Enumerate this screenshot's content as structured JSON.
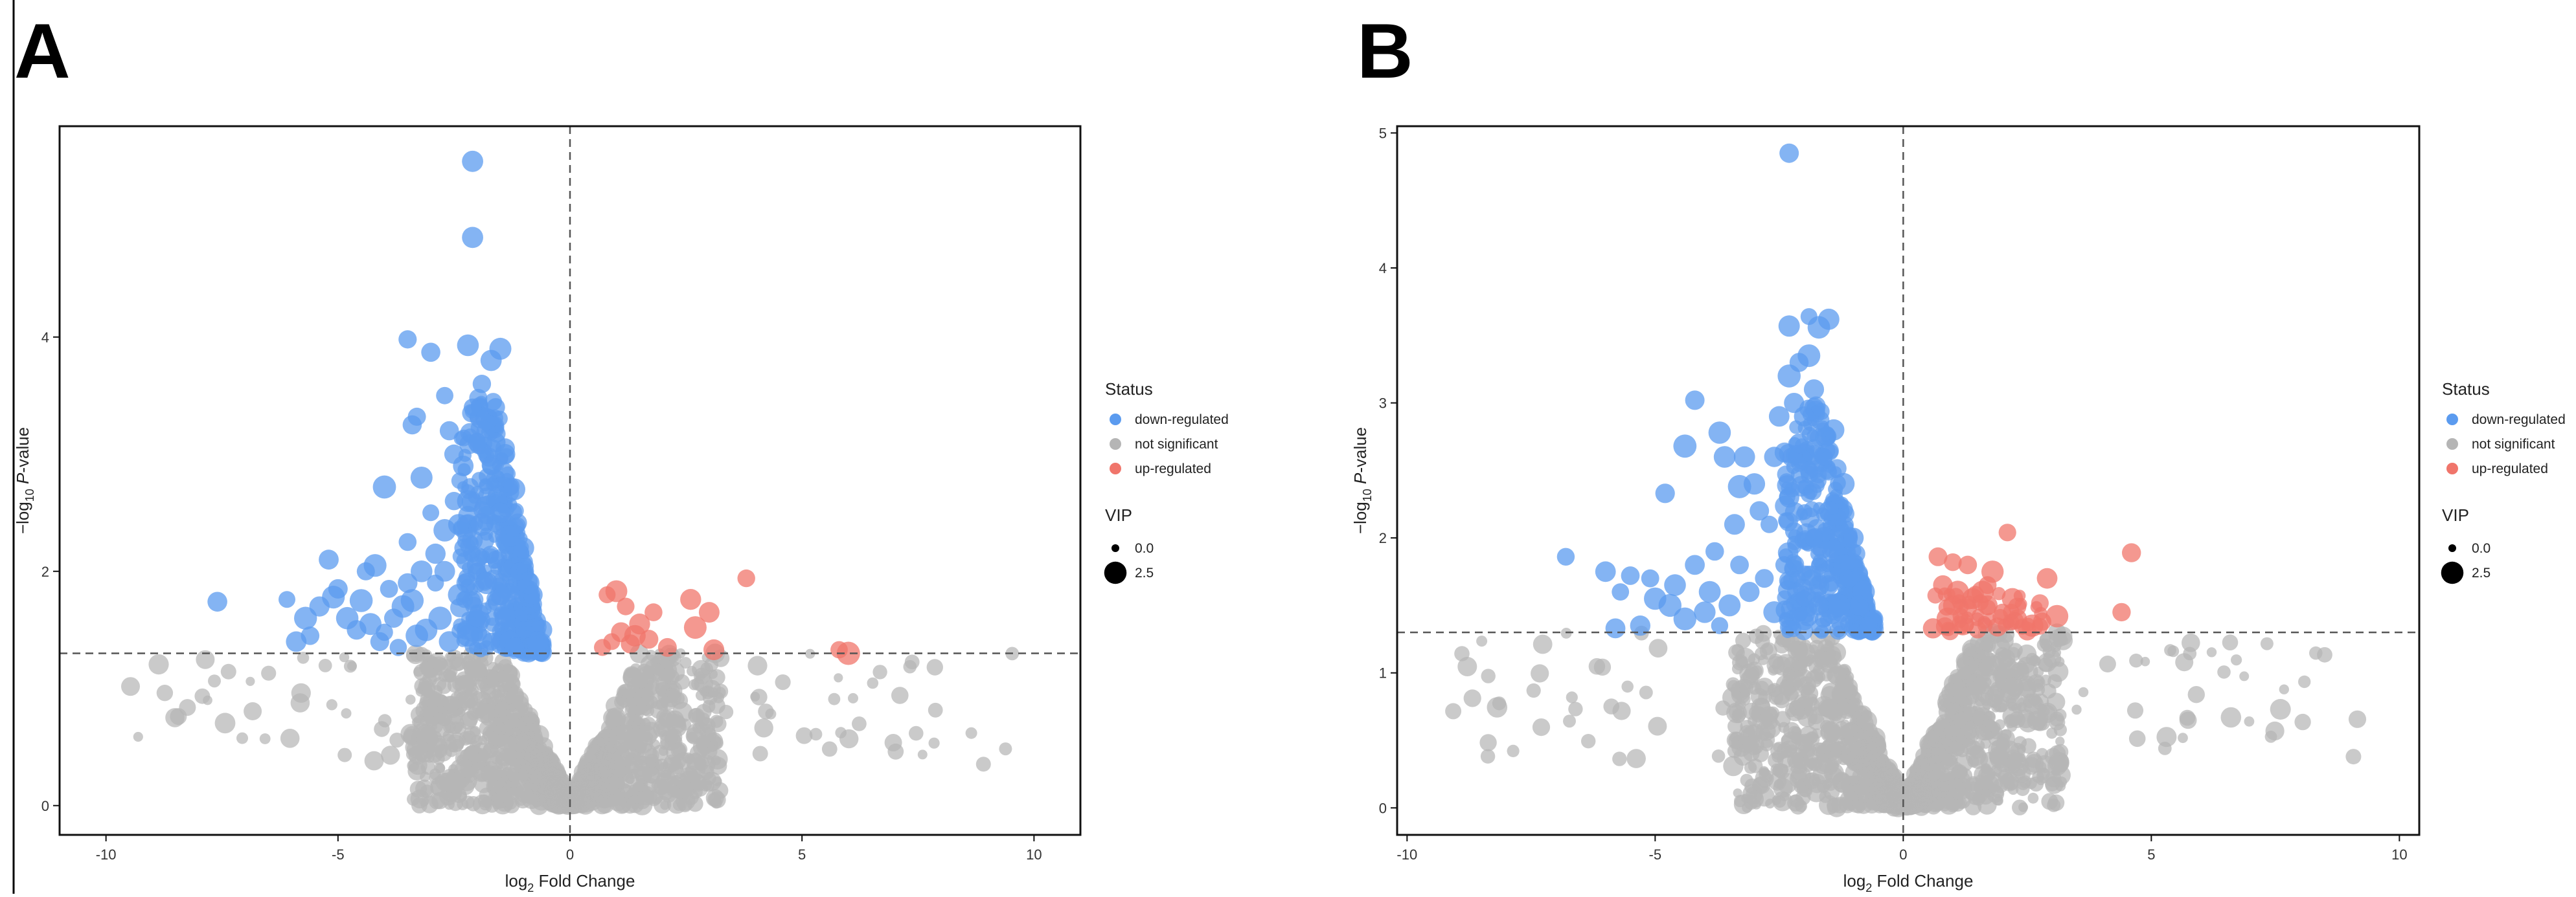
{
  "chart_data": [
    {
      "panel": "A",
      "type": "scatter",
      "subtype": "volcano",
      "xlabel_main": "log",
      "xlabel_sub": "2",
      "xlabel_rest": " Fold Change",
      "ylabel_main": "−log",
      "ylabel_sub": "10",
      "ylabel_rest": " P-value",
      "xlim": [
        -11,
        11
      ],
      "ylim": [
        -0.25,
        5.8
      ],
      "xticks": [
        -10,
        -5,
        0,
        5,
        10
      ],
      "xtick_labels": [
        "-10",
        "-5",
        "0",
        "5",
        "10"
      ],
      "yticks": [
        0,
        2,
        4
      ],
      "ytick_labels": [
        "0",
        "2",
        "4"
      ],
      "threshold_y": 1.3,
      "threshold_x": 0,
      "legend": {
        "status_title": "Status",
        "status_items": [
          {
            "label": "down-regulated",
            "color": "#5b9bef"
          },
          {
            "label": "not significant",
            "color": "#b5b5b5"
          },
          {
            "label": "up-regulated",
            "color": "#f0756b"
          }
        ],
        "vip_title": "VIP",
        "vip_items": [
          {
            "label": "0.0",
            "vip": 0.0
          },
          {
            "label": "2.5",
            "vip": 2.5
          }
        ]
      },
      "series": [
        {
          "name": "down-regulated",
          "color": "#5b9bef",
          "points": [
            [
              -2.1,
              5.5
            ],
            [
              -2.1,
              4.85
            ],
            [
              -3.5,
              3.98
            ],
            [
              -3.0,
              3.87
            ],
            [
              -2.2,
              3.93
            ],
            [
              -1.5,
              3.9
            ],
            [
              -1.7,
              3.8
            ],
            [
              -3.4,
              3.25
            ],
            [
              -3.3,
              3.32
            ],
            [
              -2.7,
              3.5
            ],
            [
              -2.6,
              3.2
            ],
            [
              -3.2,
              2.8
            ],
            [
              -4.0,
              2.72
            ],
            [
              -3.5,
              2.25
            ],
            [
              -3.0,
              2.5
            ],
            [
              -4.2,
              2.05
            ],
            [
              -4.4,
              2.0
            ],
            [
              -5.2,
              2.1
            ],
            [
              -5.0,
              1.85
            ],
            [
              -5.1,
              1.78
            ],
            [
              -5.4,
              1.7
            ],
            [
              -6.1,
              1.76
            ],
            [
              -7.6,
              1.74
            ],
            [
              -5.7,
              1.6
            ],
            [
              -5.6,
              1.45
            ],
            [
              -5.9,
              1.4
            ],
            [
              -4.8,
              1.6
            ],
            [
              -4.6,
              1.5
            ],
            [
              -4.3,
              1.55
            ],
            [
              -4.0,
              1.48
            ],
            [
              -3.8,
              1.6
            ],
            [
              -3.6,
              1.7
            ],
            [
              -3.3,
              1.45
            ],
            [
              -4.5,
              1.75
            ],
            [
              -3.9,
              1.85
            ],
            [
              -3.5,
              1.9
            ],
            [
              -3.2,
              2.0
            ],
            [
              -2.9,
              2.15
            ],
            [
              -2.7,
              2.35
            ],
            [
              -2.5,
              2.6
            ],
            [
              -2.3,
              2.9
            ],
            [
              -2.0,
              3.1
            ],
            [
              -1.8,
              3.3
            ],
            [
              -1.6,
              3.4
            ],
            [
              -1.9,
              3.6
            ],
            [
              -1.4,
              3.0
            ],
            [
              -1.2,
              2.7
            ],
            [
              -1.0,
              2.2
            ],
            [
              -0.8,
              1.8
            ],
            [
              -0.6,
              1.5
            ],
            [
              -1.1,
              1.6
            ],
            [
              -1.5,
              1.8
            ],
            [
              -2.0,
              2.0
            ],
            [
              -2.4,
              1.8
            ],
            [
              -2.8,
              1.6
            ],
            [
              -3.1,
              1.5
            ],
            [
              -1.3,
              1.4
            ],
            [
              -1.7,
              1.4
            ],
            [
              -2.2,
              1.45
            ],
            [
              -2.6,
              1.4
            ],
            [
              -1.9,
              2.4
            ],
            [
              -1.5,
              2.5
            ],
            [
              -2.2,
              2.6
            ],
            [
              -1.7,
              2.9
            ],
            [
              -2.5,
              3.0
            ],
            [
              -1.3,
              2.3
            ],
            [
              -0.9,
              1.9
            ],
            [
              -2.1,
              3.4
            ],
            [
              -1.6,
              3.1
            ],
            [
              -1.1,
              2.0
            ],
            [
              -2.9,
              1.9
            ],
            [
              -2.3,
              2.2
            ],
            [
              -3.4,
              1.75
            ],
            [
              -1.8,
              1.9
            ],
            [
              -1.4,
              1.6
            ],
            [
              -0.7,
              1.4
            ],
            [
              -4.1,
              1.4
            ],
            [
              -3.7,
              1.35
            ],
            [
              -2.0,
              1.6
            ],
            [
              -1.2,
              1.35
            ],
            [
              -2.7,
              2.0
            ],
            [
              -1.6,
              2.1
            ],
            [
              -2.4,
              2.4
            ],
            [
              -1.0,
              1.5
            ]
          ]
        },
        {
          "name": "up-regulated",
          "color": "#f0756b",
          "points": [
            [
              0.8,
              1.8
            ],
            [
              1.0,
              1.83
            ],
            [
              1.2,
              1.7
            ],
            [
              1.5,
              1.55
            ],
            [
              1.8,
              1.65
            ],
            [
              2.6,
              1.76
            ],
            [
              3.8,
              1.94
            ],
            [
              3.0,
              1.65
            ],
            [
              2.7,
              1.52
            ],
            [
              1.4,
              1.45
            ],
            [
              1.1,
              1.48
            ],
            [
              0.9,
              1.4
            ],
            [
              1.3,
              1.38
            ],
            [
              0.7,
              1.35
            ],
            [
              1.7,
              1.42
            ],
            [
              3.1,
              1.33
            ],
            [
              5.8,
              1.33
            ],
            [
              6.0,
              1.3
            ],
            [
              2.1,
              1.35
            ]
          ]
        },
        {
          "name": "not significant",
          "color": "#b5b5b5",
          "cluster": "generated"
        }
      ]
    },
    {
      "panel": "B",
      "type": "scatter",
      "subtype": "volcano",
      "xlabel_main": "log",
      "xlabel_sub": "2",
      "xlabel_rest": " Fold Change",
      "ylabel_main": "−log",
      "ylabel_sub": "10",
      "ylabel_rest": " P-value",
      "xlim": [
        -10.2,
        10.4
      ],
      "ylim": [
        -0.2,
        5.05
      ],
      "xticks": [
        -10,
        -5,
        0,
        5,
        10
      ],
      "xtick_labels": [
        "-10",
        "-5",
        "0",
        "5",
        "10"
      ],
      "yticks": [
        0,
        1,
        2,
        3,
        4,
        5
      ],
      "ytick_labels": [
        "0",
        "1",
        "2",
        "3",
        "4",
        "5"
      ],
      "threshold_y": 1.3,
      "threshold_x": 0,
      "legend": {
        "status_title": "Status",
        "status_items": [
          {
            "label": "down-regulated",
            "color": "#5b9bef"
          },
          {
            "label": "not significant",
            "color": "#b5b5b5"
          },
          {
            "label": "up-regulated",
            "color": "#f0756b"
          }
        ],
        "vip_title": "VIP",
        "vip_items": [
          {
            "label": "0.0",
            "vip": 0.0
          },
          {
            "label": "2.5",
            "vip": 2.5
          }
        ]
      },
      "series": [
        {
          "name": "down-regulated",
          "color": "#5b9bef",
          "points": [
            [
              -2.3,
              4.85
            ],
            [
              -1.9,
              3.64
            ],
            [
              -2.3,
              3.57
            ],
            [
              -1.5,
              3.62
            ],
            [
              -1.7,
              3.56
            ],
            [
              -1.9,
              3.35
            ],
            [
              -2.3,
              3.2
            ],
            [
              -2.1,
              3.3
            ],
            [
              -4.2,
              3.02
            ],
            [
              -3.7,
              2.78
            ],
            [
              -4.4,
              2.68
            ],
            [
              -3.6,
              2.6
            ],
            [
              -3.2,
              2.6
            ],
            [
              -3.0,
              2.4
            ],
            [
              -3.3,
              2.38
            ],
            [
              -4.8,
              2.33
            ],
            [
              -6.8,
              1.86
            ],
            [
              -6.0,
              1.75
            ],
            [
              -5.5,
              1.72
            ],
            [
              -5.1,
              1.7
            ],
            [
              -5.7,
              1.6
            ],
            [
              -5.0,
              1.55
            ],
            [
              -4.6,
              1.65
            ],
            [
              -4.2,
              1.8
            ],
            [
              -3.8,
              1.9
            ],
            [
              -3.4,
              2.1
            ],
            [
              -2.9,
              2.2
            ],
            [
              -2.6,
              2.6
            ],
            [
              -2.5,
              2.9
            ],
            [
              -2.2,
              3.0
            ],
            [
              -1.8,
              3.1
            ],
            [
              -1.4,
              2.8
            ],
            [
              -1.2,
              2.4
            ],
            [
              -1.0,
              2.0
            ],
            [
              -0.8,
              1.6
            ],
            [
              -0.6,
              1.4
            ],
            [
              -1.5,
              2.2
            ],
            [
              -1.9,
              2.5
            ],
            [
              -2.1,
              2.7
            ],
            [
              -1.6,
              2.0
            ],
            [
              -2.4,
              1.8
            ],
            [
              -2.8,
              1.7
            ],
            [
              -3.1,
              1.6
            ],
            [
              -3.5,
              1.5
            ],
            [
              -4.0,
              1.45
            ],
            [
              -4.4,
              1.4
            ],
            [
              -5.3,
              1.35
            ],
            [
              -5.8,
              1.33
            ],
            [
              -1.3,
              1.5
            ],
            [
              -1.7,
              1.5
            ],
            [
              -2.0,
              1.55
            ],
            [
              -2.6,
              1.45
            ],
            [
              -3.7,
              1.35
            ],
            [
              -1.1,
              1.7
            ],
            [
              -2.3,
              2.3
            ],
            [
              -1.8,
              2.0
            ],
            [
              -1.4,
              1.9
            ],
            [
              -2.7,
              2.1
            ],
            [
              -2.0,
              2.9
            ],
            [
              -1.6,
              2.6
            ],
            [
              -1.2,
              1.8
            ],
            [
              -0.9,
              1.5
            ],
            [
              -3.9,
              1.6
            ],
            [
              -4.7,
              1.5
            ],
            [
              -3.3,
              1.8
            ],
            [
              -2.2,
              2.05
            ],
            [
              -1.5,
              1.65
            ],
            [
              -0.7,
              1.35
            ]
          ]
        },
        {
          "name": "up-regulated",
          "color": "#f0756b",
          "points": [
            [
              0.7,
              1.86
            ],
            [
              1.0,
              1.82
            ],
            [
              1.3,
              1.8
            ],
            [
              1.8,
              1.75
            ],
            [
              2.1,
              2.04
            ],
            [
              2.9,
              1.7
            ],
            [
              4.6,
              1.89
            ],
            [
              4.4,
              1.45
            ],
            [
              0.8,
              1.65
            ],
            [
              1.1,
              1.6
            ],
            [
              1.4,
              1.55
            ],
            [
              1.7,
              1.5
            ],
            [
              2.0,
              1.45
            ],
            [
              2.3,
              1.4
            ],
            [
              2.6,
              1.35
            ],
            [
              3.1,
              1.42
            ],
            [
              0.9,
              1.4
            ],
            [
              1.2,
              1.36
            ],
            [
              1.5,
              1.32
            ],
            [
              1.9,
              1.34
            ],
            [
              2.5,
              1.31
            ],
            [
              0.6,
              1.33
            ],
            [
              1.6,
              1.6
            ],
            [
              2.2,
              1.55
            ],
            [
              1.3,
              1.48
            ],
            [
              2.8,
              1.38
            ],
            [
              1.0,
              1.5
            ],
            [
              1.7,
              1.65
            ]
          ]
        },
        {
          "name": "not significant",
          "color": "#b5b5b5",
          "cluster": "generated"
        }
      ]
    }
  ]
}
